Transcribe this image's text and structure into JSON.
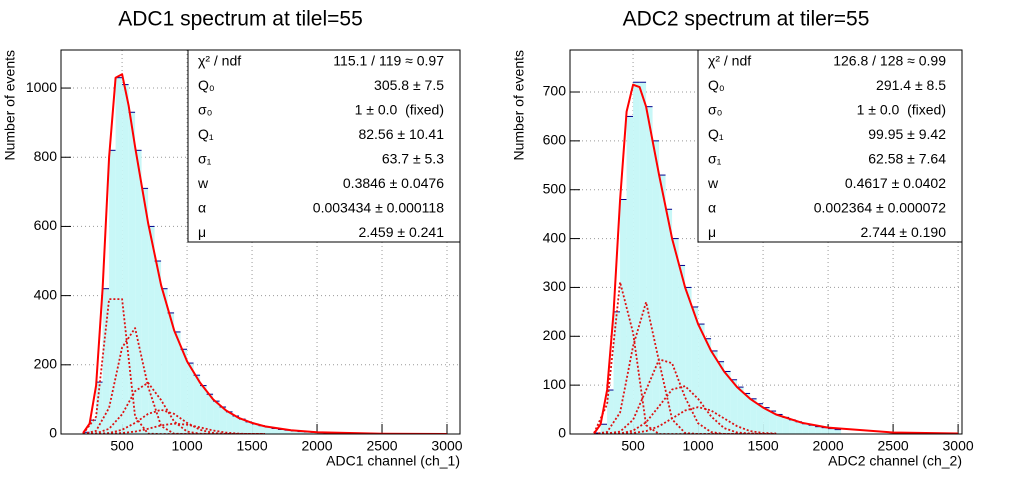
{
  "chart_data": [
    {
      "type": "histogram",
      "title": "ADC1 spectrum at tilel=55",
      "xlabel": "ADC1 channel (ch_1)",
      "ylabel": "Number of events",
      "xlim": [
        30,
        3100
      ],
      "ylim": [
        0,
        1110
      ],
      "xticks": [
        500,
        1000,
        1500,
        2000,
        2500,
        3000
      ],
      "yticks": [
        0,
        200,
        400,
        600,
        800,
        1000
      ],
      "grid": true,
      "color": "#00008b",
      "fill": "#c8f7f7",
      "bins": [
        100,
        150,
        200,
        250,
        300,
        350,
        400,
        450,
        500,
        550,
        600,
        650,
        700,
        750,
        800,
        850,
        900,
        950,
        1000,
        1050,
        1100,
        1150,
        1200,
        1250,
        1300,
        1350,
        1400,
        1450,
        1500,
        1550,
        1600,
        1650,
        1700,
        1750,
        1800,
        1850,
        1900,
        1950,
        2000,
        2050,
        2100
      ],
      "counts": [
        0,
        0,
        5,
        40,
        150,
        420,
        820,
        1030,
        1010,
        930,
        820,
        710,
        600,
        500,
        420,
        350,
        295,
        245,
        205,
        170,
        140,
        115,
        95,
        78,
        64,
        52,
        43,
        35,
        29,
        24,
        20,
        16,
        13,
        11,
        9,
        7,
        6,
        5,
        4,
        3
      ],
      "fit": {
        "color": "#ff0000",
        "x": [
          200,
          250,
          300,
          350,
          400,
          450,
          500,
          550,
          600,
          650,
          700,
          800,
          900,
          1000,
          1100,
          1200,
          1300,
          1400,
          1500,
          1600,
          1800,
          2000,
          2500,
          3000
        ],
        "y": [
          3,
          30,
          140,
          420,
          800,
          1030,
          1040,
          950,
          830,
          720,
          610,
          430,
          300,
          210,
          148,
          100,
          68,
          46,
          32,
          22,
          11,
          5,
          1,
          0
        ]
      },
      "components": {
        "color": "#dd1111",
        "x": [
          200,
          300,
          400,
          500,
          600,
          700,
          800,
          900,
          1000,
          1100,
          1200,
          1300,
          1400,
          1500,
          1600
        ],
        "series": [
          [
            1,
            50,
            390,
            390,
            50,
            1,
            0,
            0,
            0,
            0,
            0,
            0,
            0,
            0,
            0
          ],
          [
            0,
            9,
            76,
            250,
            306,
            137,
            23,
            1,
            0,
            0,
            0,
            0,
            0,
            0,
            0
          ],
          [
            0,
            2,
            15,
            57,
            124,
            148,
            98,
            36,
            7,
            1,
            0,
            0,
            0,
            0,
            0
          ],
          [
            0,
            0,
            3,
            12,
            32,
            58,
            70,
            58,
            32,
            12,
            3,
            0,
            0,
            0,
            0
          ],
          [
            0,
            0,
            0,
            3,
            7,
            15,
            25,
            30,
            27,
            19,
            10,
            4,
            1,
            0,
            0
          ]
        ]
      },
      "stats": {
        "labels": [
          "χ² / ndf",
          "Q₀",
          "σ₀",
          "Q₁",
          "σ₁",
          "w",
          "α",
          "μ"
        ],
        "values": [
          "115.1 / 119 ≈ 0.97",
          "305.8 ± 7.5",
          "1 ± 0.0  (fixed)",
          "82.56 ± 10.41",
          "63.7 ± 5.3",
          "0.3846 ± 0.0476",
          "0.003434 ± 0.000118",
          "2.459 ± 0.241"
        ]
      }
    },
    {
      "type": "histogram",
      "title": "ADC2 spectrum at tiler=55",
      "xlabel": "ADC2 channel (ch_2)",
      "ylabel": "Number of events",
      "xlim": [
        15,
        3030
      ],
      "ylim": [
        0,
        786
      ],
      "xticks": [
        500,
        1000,
        1500,
        2000,
        2500,
        3000
      ],
      "yticks": [
        0,
        100,
        200,
        300,
        400,
        500,
        600,
        700
      ],
      "grid": true,
      "color": "#00008b",
      "fill": "#c8f7f7",
      "bins": [
        100,
        150,
        200,
        250,
        300,
        350,
        400,
        450,
        500,
        550,
        600,
        650,
        700,
        750,
        800,
        850,
        900,
        950,
        1000,
        1050,
        1100,
        1150,
        1200,
        1250,
        1300,
        1350,
        1400,
        1450,
        1500,
        1550,
        1600,
        1650,
        1700,
        1750,
        1800,
        1850,
        1900,
        1950,
        2000,
        2050,
        2100
      ],
      "counts": [
        0,
        0,
        2,
        20,
        90,
        250,
        480,
        650,
        720,
        720,
        670,
        600,
        530,
        460,
        400,
        345,
        300,
        260,
        225,
        195,
        170,
        148,
        128,
        111,
        96,
        83,
        72,
        62,
        54,
        47,
        40,
        34,
        29,
        25,
        21,
        18,
        15,
        13,
        11,
        9
      ],
      "fit": {
        "color": "#ff0000",
        "x": [
          200,
          250,
          300,
          350,
          400,
          450,
          500,
          550,
          600,
          650,
          700,
          800,
          900,
          1000,
          1100,
          1200,
          1300,
          1400,
          1500,
          1600,
          1800,
          2000,
          2500,
          3000
        ],
        "y": [
          1,
          20,
          90,
          250,
          480,
          660,
          715,
          710,
          670,
          600,
          530,
          400,
          300,
          225,
          170,
          128,
          96,
          72,
          54,
          40,
          23,
          13,
          3,
          1
        ]
      },
      "components": {
        "color": "#dd1111",
        "x": [
          200,
          300,
          400,
          500,
          600,
          700,
          800,
          900,
          1000,
          1100,
          1200,
          1300,
          1400,
          1500,
          1600
        ],
        "series": [
          [
            2,
            61,
            311,
            207,
            18,
            0,
            0,
            0,
            0,
            0,
            0,
            0,
            0,
            0,
            0
          ],
          [
            0,
            4,
            44,
            180,
            270,
            148,
            30,
            2,
            0,
            0,
            0,
            0,
            0,
            0,
            0
          ],
          [
            0,
            1,
            5,
            29,
            90,
            153,
            145,
            75,
            22,
            4,
            0,
            0,
            0,
            0,
            0
          ],
          [
            0,
            0,
            1,
            7,
            24,
            57,
            91,
            98,
            72,
            36,
            12,
            3,
            1,
            0,
            0
          ],
          [
            0,
            0,
            0,
            2,
            6,
            16,
            32,
            48,
            55,
            48,
            32,
            16,
            6,
            2,
            1
          ]
        ]
      },
      "stats": {
        "labels": [
          "χ² / ndf",
          "Q₀",
          "σ₀",
          "Q₁",
          "σ₁",
          "w",
          "α",
          "μ"
        ],
        "values": [
          "126.8 / 128 ≈ 0.99",
          "291.4 ± 8.5",
          "1 ± 0.0  (fixed)",
          "99.95 ± 9.42",
          "62.58 ± 7.64",
          "0.4617 ± 0.0402",
          "0.002364 ± 0.000072",
          "2.744 ± 0.190"
        ]
      }
    }
  ]
}
